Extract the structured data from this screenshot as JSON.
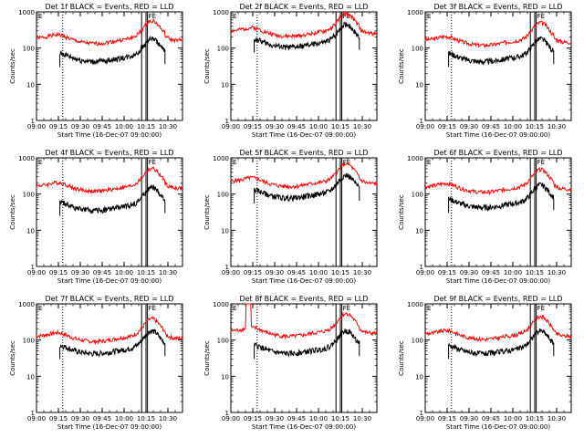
{
  "chart_data": [
    {
      "type": "line",
      "title": "Det 1f BLACK = Events, RED = LLD",
      "seed": 1,
      "red_base": 190,
      "black_base": 60,
      "spike": false
    },
    {
      "type": "line",
      "title": "Det 2f BLACK = Events, RED = LLD",
      "seed": 2,
      "red_base": 300,
      "black_base": 150,
      "spike": false
    },
    {
      "type": "line",
      "title": "Det 3f BLACK = Events, RED = LLD",
      "seed": 3,
      "red_base": 170,
      "black_base": 60,
      "spike": false
    },
    {
      "type": "line",
      "title": "Det 4f BLACK = Events, RED = LLD",
      "seed": 4,
      "red_base": 170,
      "black_base": 50,
      "spike": false
    },
    {
      "type": "line",
      "title": "Det 5f BLACK = Events, RED = LLD",
      "seed": 5,
      "red_base": 230,
      "black_base": 110,
      "spike": false
    },
    {
      "type": "line",
      "title": "Det 6f BLACK = Events, RED = LLD",
      "seed": 6,
      "red_base": 160,
      "black_base": 60,
      "spike": false
    },
    {
      "type": "line",
      "title": "Det 7f BLACK = Events, RED = LLD",
      "seed": 7,
      "red_base": 130,
      "black_base": 60,
      "spike": false
    },
    {
      "type": "line",
      "title": "Det 8f BLACK = Events, RED = LLD",
      "seed": 8,
      "red_base": 180,
      "black_base": 60,
      "spike": true
    },
    {
      "type": "line",
      "title": "Det 9f BLACK = Events, RED = LLD",
      "seed": 9,
      "red_base": 150,
      "black_base": 60,
      "spike": false
    }
  ],
  "shared": {
    "xlabel": "Start Time (16-Dec-07 09:00:00)",
    "ylabel": "Counts/sec",
    "xticks": [
      "09:00",
      "09:15",
      "09:30",
      "09:45",
      "10:00",
      "10:15",
      "10:30"
    ],
    "yticks": [
      "1",
      "10",
      "100",
      "1000"
    ],
    "ylim": [
      1,
      1000
    ],
    "ylog": true,
    "marker_left": "E",
    "marker_right": "FE",
    "colors": {
      "events": "#000000",
      "lld": "#ff0000"
    },
    "series": [
      {
        "name": "Events",
        "color": "#000000"
      },
      {
        "name": "LLD",
        "color": "#ff0000"
      }
    ]
  }
}
